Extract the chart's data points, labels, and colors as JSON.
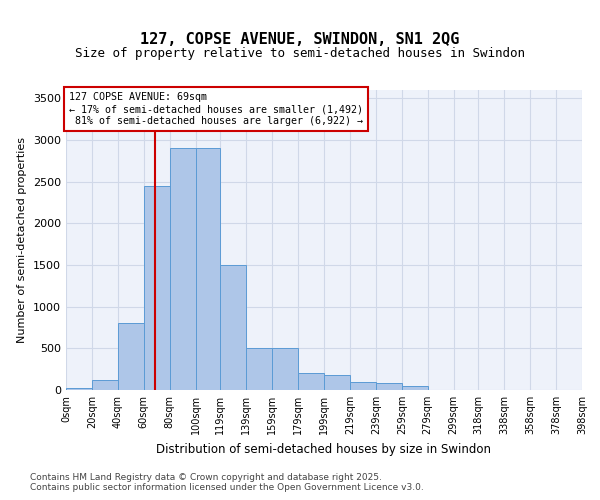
{
  "title_line1": "127, COPSE AVENUE, SWINDON, SN1 2QG",
  "title_line2": "Size of property relative to semi-detached houses in Swindon",
  "xlabel": "Distribution of semi-detached houses by size in Swindon",
  "ylabel": "Number of semi-detached properties",
  "property_size": 69,
  "property_label": "127 COPSE AVENUE: 69sqm",
  "pct_smaller": 17,
  "pct_larger": 81,
  "n_smaller": 1492,
  "n_larger": 6922,
  "annotation_type": "semi-detached",
  "bar_bins": [
    0,
    20,
    40,
    60,
    80,
    100,
    119,
    139,
    159,
    179,
    199,
    219,
    239,
    259,
    279,
    299,
    318,
    338,
    358,
    378,
    398
  ],
  "bar_values": [
    20,
    120,
    800,
    2450,
    2900,
    2900,
    1500,
    500,
    500,
    200,
    180,
    100,
    80,
    50,
    0,
    0,
    0,
    0,
    0,
    0
  ],
  "bar_color": "#aec6e8",
  "bar_edge_color": "#5b9bd5",
  "red_line_color": "#cc0000",
  "annotation_box_color": "#cc0000",
  "grid_color": "#d0d8e8",
  "background_color": "#eef2fa",
  "ylim": [
    0,
    3600
  ],
  "yticks": [
    0,
    500,
    1000,
    1500,
    2000,
    2500,
    3000,
    3500
  ],
  "tick_labels": [
    "0sqm",
    "20sqm",
    "40sqm",
    "60sqm",
    "80sqm",
    "100sqm",
    "119sqm",
    "139sqm",
    "159sqm",
    "179sqm",
    "199sqm",
    "219sqm",
    "239sqm",
    "259sqm",
    "279sqm",
    "299sqm",
    "318sqm",
    "338sqm",
    "358sqm",
    "378sqm",
    "398sqm"
  ],
  "footer_line1": "Contains HM Land Registry data © Crown copyright and database right 2025.",
  "footer_line2": "Contains public sector information licensed under the Open Government Licence v3.0."
}
